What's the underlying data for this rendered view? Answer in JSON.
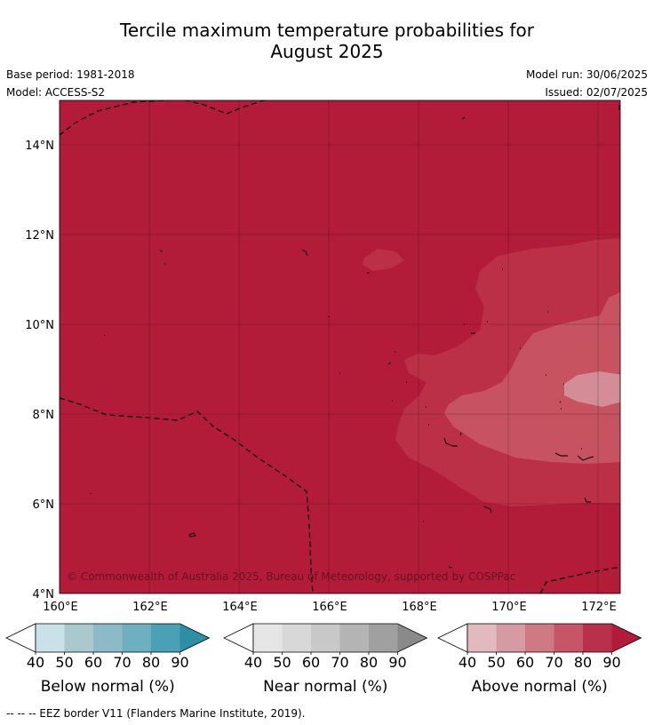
{
  "title_line1": "Tercile maximum temperature probabilities for",
  "title_line2": "August 2025",
  "base_period": "Base period: 1981-2018",
  "model": "Model: ACCESS-S2",
  "model_run": "Model run: 30/06/2025",
  "issued": "Issued: 02/07/2025",
  "copyright": "© Commonwealth of Australia 2025, Bureau of Meteorology, supported by COSPPac",
  "map": {
    "lat_ticks": [
      "14°N",
      "12°N",
      "10°N",
      "8°N",
      "6°N",
      "4°N"
    ],
    "lon_ticks": [
      "160°E",
      "162°E",
      "164°E",
      "166°E",
      "168°E",
      "170°E",
      "172°E"
    ],
    "background_color": "#b21c38",
    "contour_colors": [
      "#bb3047",
      "#c75261",
      "#d38d96"
    ]
  },
  "colorbars": [
    {
      "label": "Below normal (%)",
      "ticks": [
        "40",
        "50",
        "60",
        "70",
        "80",
        "90"
      ],
      "colors": [
        "#c9e2e8",
        "#a9c9ce",
        "#8cbbc7",
        "#6fb0c0",
        "#4aa1b6",
        "#2c8fa5"
      ]
    },
    {
      "label": "Near normal (%)",
      "ticks": [
        "40",
        "50",
        "60",
        "70",
        "80",
        "90"
      ],
      "colors": [
        "#e6e6e6",
        "#d8d8d8",
        "#c8c8c8",
        "#b4b4b4",
        "#a0a0a0",
        "#8a8a8a"
      ]
    },
    {
      "label": "Above normal (%)",
      "ticks": [
        "40",
        "50",
        "60",
        "70",
        "80",
        "90"
      ],
      "colors": [
        "#e2b9bf",
        "#d59aa2",
        "#cf7a83",
        "#c65566",
        "#b9304a",
        "#b21c3a"
      ]
    }
  ],
  "footer": "--  --  -- EEZ border V11 (Flanders Marine Institute, 2019)."
}
